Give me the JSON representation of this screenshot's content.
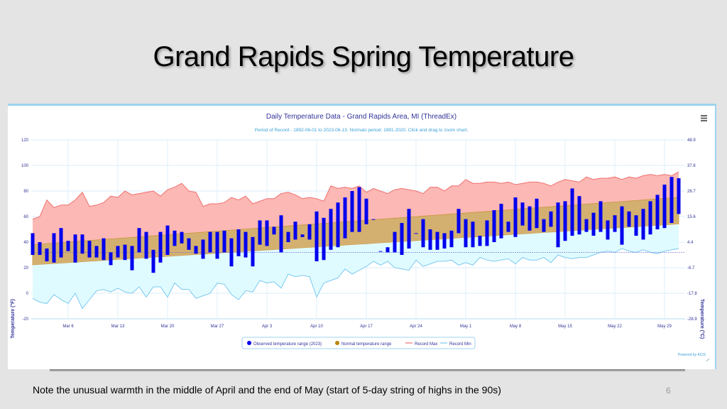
{
  "slide": {
    "title": "Grand Rapids Spring Temperature",
    "note": "Note the unusual warmth in the middle of April and the end of May (start of 5-day string of highs in the 90s)",
    "number": "6"
  },
  "chart_data": {
    "type": "bar",
    "title": "Daily Temperature Data - Grand Rapids Area, MI (ThreadEx)",
    "subtitle": "Period of Record - 1892-06-01 to 2023-06-13. Normals period: 1991-2020. Click and drag to zoom chart.",
    "ylabel": "Temperature (°F)",
    "y2label": "Temperature (°C)",
    "ylim": [
      -20,
      120
    ],
    "yticks": [
      -20,
      0,
      20,
      40,
      60,
      80,
      100,
      120
    ],
    "y2ticks": [
      "-28.9",
      "-17.8",
      "-6.7",
      "4.4",
      "15.6",
      "26.7",
      "37.8",
      "48.9"
    ],
    "xticks": [
      "Mar 6",
      "Mar 13",
      "Mar 20",
      "Mar 27",
      "Apr 3",
      "Apr 10",
      "Apr 17",
      "Apr 24",
      "May 1",
      "May 8",
      "May 15",
      "May 22",
      "May 29"
    ],
    "xtick_day_index": [
      5,
      12,
      19,
      26,
      33,
      40,
      47,
      54,
      61,
      68,
      75,
      82,
      89
    ],
    "freezing_line": 32,
    "start_date": "Mar 1",
    "legend": [
      "Observed temperature range (2023)",
      "Normal temperature range",
      "Record Max",
      "Record Min"
    ],
    "legend_position": "bottom",
    "credit": "Powered by ACIS",
    "colors": {
      "observed": "#0000ee",
      "normal_fill": "#d4b070",
      "normal_line": "#c8963c",
      "record_max_line": "#f07070",
      "record_max_fill": "#fbb8b4",
      "record_min_line": "#7cc8f0",
      "record_min_fill": "#e0fbff",
      "axis_text": "#333399",
      "title": "#333399",
      "subtitle": "#3aa0d8"
    },
    "series": [
      {
        "name": "Observed high",
        "values": [
          47,
          40,
          35,
          47,
          51,
          41,
          46,
          46,
          41,
          37,
          43,
          32,
          37,
          38,
          37,
          51,
          48,
          34,
          48,
          53,
          49,
          48,
          43,
          37,
          42,
          48,
          48,
          49,
          43,
          50,
          48,
          44,
          57,
          57,
          52,
          61,
          48,
          56,
          46,
          54,
          64,
          59,
          66,
          71,
          75,
          80,
          83,
          74,
          58,
          33,
          36,
          48,
          55,
          66,
          47,
          58,
          50,
          48,
          47,
          49,
          66,
          58,
          56,
          45,
          57,
          65,
          70,
          56,
          75,
          71,
          68,
          74,
          58,
          64,
          71,
          72,
          82,
          76,
          58,
          63,
          72,
          57,
          61,
          68,
          64,
          61,
          66,
          72,
          77,
          85,
          91,
          90
        ]
      },
      {
        "name": "Observed low",
        "values": [
          30,
          30,
          25,
          24,
          28,
          33,
          24,
          31,
          28,
          28,
          26,
          22,
          28,
          26,
          18,
          32,
          27,
          16,
          24,
          30,
          37,
          39,
          34,
          31,
          27,
          32,
          27,
          32,
          21,
          29,
          28,
          21,
          38,
          37,
          46,
          32,
          40,
          42,
          44,
          42,
          25,
          26,
          34,
          36,
          43,
          48,
          48,
          54,
          59,
          33,
          32,
          32,
          30,
          35,
          48,
          36,
          34,
          34,
          35,
          36,
          47,
          36,
          36,
          37,
          37,
          40,
          43,
          48,
          44,
          53,
          49,
          51,
          48,
          52,
          36,
          41,
          45,
          46,
          48,
          45,
          48,
          42,
          48,
          38,
          52,
          45,
          42,
          46,
          50,
          51,
          55,
          62
        ]
      },
      {
        "name": "Normal high",
        "range": [
          38,
          75
        ]
      },
      {
        "name": "Normal low",
        "range": [
          22,
          54
        ]
      },
      {
        "name": "Record Max",
        "values": [
          58,
          60,
          73,
          67,
          69,
          69,
          73,
          79,
          68,
          69,
          71,
          76,
          75,
          80,
          77,
          78,
          79,
          80,
          76,
          81,
          83,
          86,
          80,
          79,
          68,
          70,
          70,
          71,
          75,
          73,
          76,
          70,
          72,
          74,
          74,
          78,
          79,
          77,
          74,
          75,
          74,
          72,
          84,
          82,
          83,
          82,
          84,
          79,
          82,
          80,
          78,
          81,
          82,
          81,
          80,
          78,
          83,
          83,
          80,
          84,
          84,
          89,
          86,
          86,
          87,
          87,
          86,
          87,
          85,
          86,
          87,
          87,
          86,
          84,
          87,
          89,
          88,
          87,
          91,
          89,
          90,
          90,
          91,
          89,
          91,
          90,
          92,
          93,
          92,
          93,
          92,
          95
        ]
      },
      {
        "name": "Record Min",
        "values": [
          -4,
          -7,
          -8,
          -1,
          -5,
          -8,
          0,
          -12,
          -5,
          2,
          3,
          1,
          4,
          1,
          0,
          5,
          -3,
          5,
          5,
          -3,
          8,
          3,
          3,
          -4,
          -2,
          0,
          8,
          7,
          -1,
          -5,
          2,
          1,
          10,
          8,
          9,
          4,
          15,
          13,
          14,
          13,
          -3,
          8,
          10,
          12,
          19,
          15,
          18,
          21,
          25,
          22,
          25,
          20,
          19,
          18,
          26,
          21,
          23,
          25,
          25,
          26,
          22,
          24,
          22,
          28,
          26,
          25,
          26,
          27,
          23,
          28,
          26,
          26,
          28,
          24,
          30,
          28,
          27,
          28,
          28,
          30,
          32,
          33,
          32,
          35,
          33,
          32,
          34,
          32,
          31,
          33,
          34,
          35
        ]
      }
    ]
  }
}
